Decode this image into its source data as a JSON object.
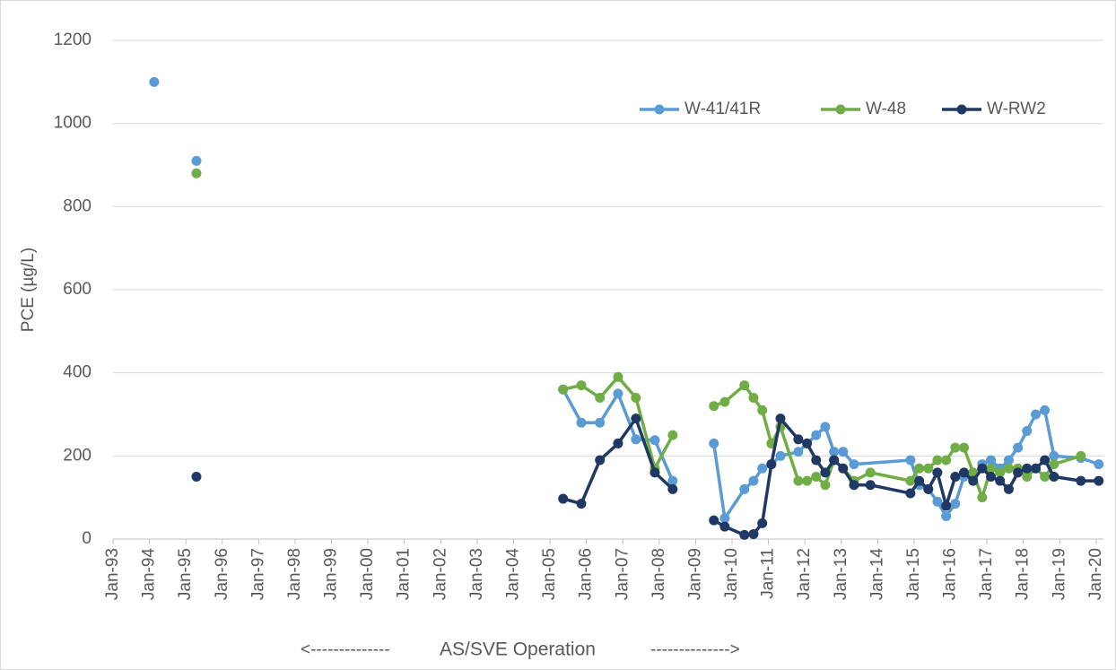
{
  "chart_data": {
    "type": "line",
    "ylabel": "PCE (µg/L)",
    "annotations": [
      "<--------------",
      "AS/SVE Operation",
      "-------------->"
    ],
    "xlim": [
      1993,
      2020.2
    ],
    "ylim": [
      0,
      1200
    ],
    "yticks": [
      0,
      200,
      400,
      600,
      800,
      1000,
      1200
    ],
    "xticks": [
      {
        "value": 1993,
        "label": "Jan-93"
      },
      {
        "value": 1994,
        "label": "Jan-94"
      },
      {
        "value": 1995,
        "label": "Jan-95"
      },
      {
        "value": 1996,
        "label": "Jan-96"
      },
      {
        "value": 1997,
        "label": "Jan-97"
      },
      {
        "value": 1998,
        "label": "Jan-98"
      },
      {
        "value": 1999,
        "label": "Jan-99"
      },
      {
        "value": 2000,
        "label": "Jan-00"
      },
      {
        "value": 2001,
        "label": "Jan-01"
      },
      {
        "value": 2002,
        "label": "Jan-02"
      },
      {
        "value": 2003,
        "label": "Jan-03"
      },
      {
        "value": 2004,
        "label": "Jan-04"
      },
      {
        "value": 2005,
        "label": "Jan-05"
      },
      {
        "value": 2006,
        "label": "Jan-06"
      },
      {
        "value": 2007,
        "label": "Jan-07"
      },
      {
        "value": 2008,
        "label": "Jan-08"
      },
      {
        "value": 2009,
        "label": "Jan-09"
      },
      {
        "value": 2010,
        "label": "Jan-10"
      },
      {
        "value": 2011,
        "label": "Jan-11"
      },
      {
        "value": 2012,
        "label": "Jan-12"
      },
      {
        "value": 2013,
        "label": "Jan-13"
      },
      {
        "value": 2014,
        "label": "Jan-14"
      },
      {
        "value": 2015,
        "label": "Jan-15"
      },
      {
        "value": 2016,
        "label": "Jan-16"
      },
      {
        "value": 2017,
        "label": "Jan-17"
      },
      {
        "value": 2018,
        "label": "Jan-18"
      },
      {
        "value": 2019,
        "label": "Jan-19"
      },
      {
        "value": 2020,
        "label": "Jan-20"
      }
    ],
    "grid": true,
    "series": [
      {
        "name": "W-41/41R",
        "color": "#5b9bd5",
        "x": [
          1994.13,
          null,
          1995.29,
          null,
          2005.36,
          2005.86,
          2006.37,
          2006.87,
          2007.36,
          2007.88,
          2008.37,
          null,
          2009.5,
          2009.8,
          2010.34,
          2010.59,
          2010.83,
          2011.08,
          2011.33,
          2011.82,
          2012.31,
          2012.56,
          2012.8,
          2013.05,
          2013.35,
          2014.9,
          2015.14,
          2015.39,
          2015.64,
          2015.88,
          2016.13,
          2016.37,
          2016.62,
          2016.87,
          2017.11,
          2017.36,
          2017.6,
          2017.85,
          2018.1,
          2018.34,
          2018.59,
          2018.84,
          2019.58,
          2020.07
        ],
        "values": [
          1100,
          null,
          910,
          null,
          360,
          280,
          280,
          350,
          240,
          238,
          140,
          null,
          230,
          50,
          120,
          140,
          170,
          180,
          200,
          210,
          250,
          270,
          210,
          210,
          180,
          190,
          130,
          120,
          90,
          55,
          85,
          150,
          150,
          180,
          190,
          170,
          190,
          220,
          260,
          300,
          310,
          200,
          195,
          180
        ]
      },
      {
        "name": "W-48",
        "color": "#70ad47",
        "x": [
          1995.29,
          null,
          2005.36,
          2005.86,
          2006.37,
          2006.87,
          2007.36,
          2007.88,
          2008.37,
          null,
          2009.5,
          2009.8,
          2010.34,
          2010.59,
          2010.83,
          2011.08,
          2011.33,
          2011.82,
          2012.06,
          2012.31,
          2012.56,
          2012.8,
          2013.05,
          2013.35,
          2013.8,
          2014.9,
          2015.14,
          2015.39,
          2015.64,
          2015.88,
          2016.13,
          2016.37,
          2016.62,
          2016.87,
          2017.11,
          2017.36,
          2017.6,
          2017.85,
          2018.1,
          2018.34,
          2018.59,
          2018.84,
          2019.58
        ],
        "values": [
          880,
          null,
          360,
          370,
          340,
          390,
          340,
          170,
          250,
          null,
          320,
          330,
          370,
          340,
          310,
          230,
          270,
          140,
          140,
          150,
          130,
          190,
          170,
          140,
          160,
          140,
          170,
          170,
          190,
          190,
          220,
          220,
          160,
          100,
          170,
          160,
          170,
          170,
          150,
          170,
          150,
          180,
          200
        ]
      },
      {
        "name": "W-RW2",
        "color": "#203864",
        "x": [
          1995.29,
          null,
          2005.36,
          2005.86,
          2006.37,
          2006.87,
          2007.36,
          2007.88,
          2008.37,
          null,
          2009.5,
          2009.8,
          2010.34,
          2010.59,
          2010.83,
          2011.08,
          2011.33,
          2011.82,
          2012.06,
          2012.31,
          2012.56,
          2012.8,
          2013.05,
          2013.35,
          2013.8,
          2014.9,
          2015.14,
          2015.39,
          2015.64,
          2015.88,
          2016.13,
          2016.37,
          2016.62,
          2016.87,
          2017.11,
          2017.36,
          2017.6,
          2017.85,
          2018.1,
          2018.34,
          2018.59,
          2018.84,
          2019.58,
          2020.07
        ],
        "values": [
          150,
          null,
          97,
          85,
          190,
          230,
          290,
          160,
          120,
          null,
          45,
          30,
          10,
          12,
          38,
          180,
          290,
          240,
          230,
          190,
          160,
          190,
          170,
          130,
          130,
          110,
          140,
          120,
          160,
          80,
          150,
          160,
          140,
          170,
          150,
          140,
          120,
          160,
          170,
          170,
          190,
          150,
          140,
          140
        ]
      }
    ]
  }
}
